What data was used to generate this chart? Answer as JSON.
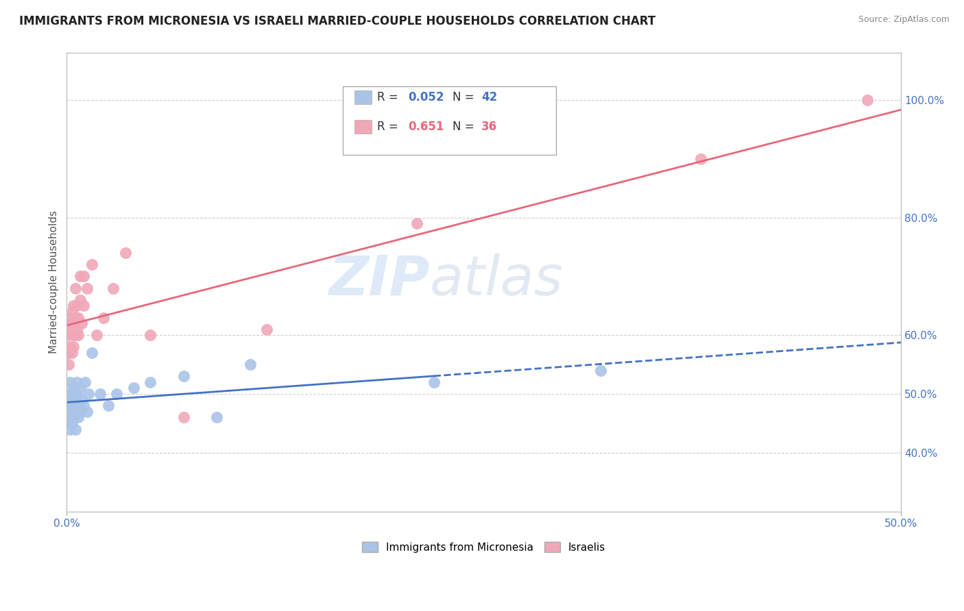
{
  "title": "IMMIGRANTS FROM MICRONESIA VS ISRAELI MARRIED-COUPLE HOUSEHOLDS CORRELATION CHART",
  "source": "Source: ZipAtlas.com",
  "ylabel": "Married-couple Households",
  "legend_blue_label": "Immigrants from Micronesia",
  "legend_pink_label": "Israelis",
  "blue_color": "#aac4e8",
  "pink_color": "#f0a8b8",
  "blue_line_color": "#4472c4",
  "pink_line_color": "#e8667a",
  "tick_color": "#4472c4",
  "grid_color": "#cccccc",
  "blue_dots_x": [
    0.001,
    0.001,
    0.001,
    0.002,
    0.002,
    0.002,
    0.002,
    0.003,
    0.003,
    0.003,
    0.003,
    0.003,
    0.004,
    0.004,
    0.004,
    0.004,
    0.005,
    0.005,
    0.005,
    0.006,
    0.006,
    0.006,
    0.007,
    0.007,
    0.008,
    0.008,
    0.009,
    0.01,
    0.011,
    0.012,
    0.013,
    0.015,
    0.02,
    0.025,
    0.03,
    0.04,
    0.05,
    0.07,
    0.09,
    0.11,
    0.22,
    0.32
  ],
  "blue_dots_y": [
    0.48,
    0.5,
    0.46,
    0.52,
    0.49,
    0.47,
    0.44,
    0.5,
    0.46,
    0.48,
    0.47,
    0.45,
    0.51,
    0.48,
    0.46,
    0.5,
    0.49,
    0.47,
    0.44,
    0.52,
    0.48,
    0.5,
    0.46,
    0.48,
    0.51,
    0.47,
    0.49,
    0.48,
    0.52,
    0.47,
    0.5,
    0.57,
    0.5,
    0.48,
    0.5,
    0.51,
    0.52,
    0.53,
    0.46,
    0.55,
    0.52,
    0.54
  ],
  "pink_dots_x": [
    0.001,
    0.001,
    0.001,
    0.002,
    0.002,
    0.002,
    0.003,
    0.003,
    0.003,
    0.004,
    0.004,
    0.004,
    0.005,
    0.005,
    0.005,
    0.006,
    0.006,
    0.007,
    0.007,
    0.008,
    0.008,
    0.009,
    0.01,
    0.01,
    0.012,
    0.015,
    0.018,
    0.022,
    0.028,
    0.035,
    0.05,
    0.07,
    0.12,
    0.21,
    0.38,
    0.48
  ],
  "pink_dots_y": [
    0.57,
    0.6,
    0.55,
    0.63,
    0.58,
    0.61,
    0.57,
    0.62,
    0.64,
    0.6,
    0.65,
    0.58,
    0.63,
    0.6,
    0.68,
    0.61,
    0.65,
    0.6,
    0.63,
    0.66,
    0.7,
    0.62,
    0.65,
    0.7,
    0.68,
    0.72,
    0.6,
    0.63,
    0.68,
    0.74,
    0.6,
    0.46,
    0.61,
    0.79,
    0.9,
    1.0
  ],
  "blue_r": "0.052",
  "blue_n": "42",
  "pink_r": "0.651",
  "pink_n": "36",
  "xmin": 0.0,
  "xmax": 0.5,
  "ymin": 0.3,
  "ymax": 1.08,
  "yticks": [
    0.4,
    0.5,
    0.6,
    0.8,
    1.0
  ],
  "ytick_labels": [
    "40.0%",
    "50.0%",
    "60.0%",
    "80.0%",
    "100.0%"
  ],
  "title_fontsize": 12,
  "tick_fontsize": 11,
  "label_fontsize": 11
}
